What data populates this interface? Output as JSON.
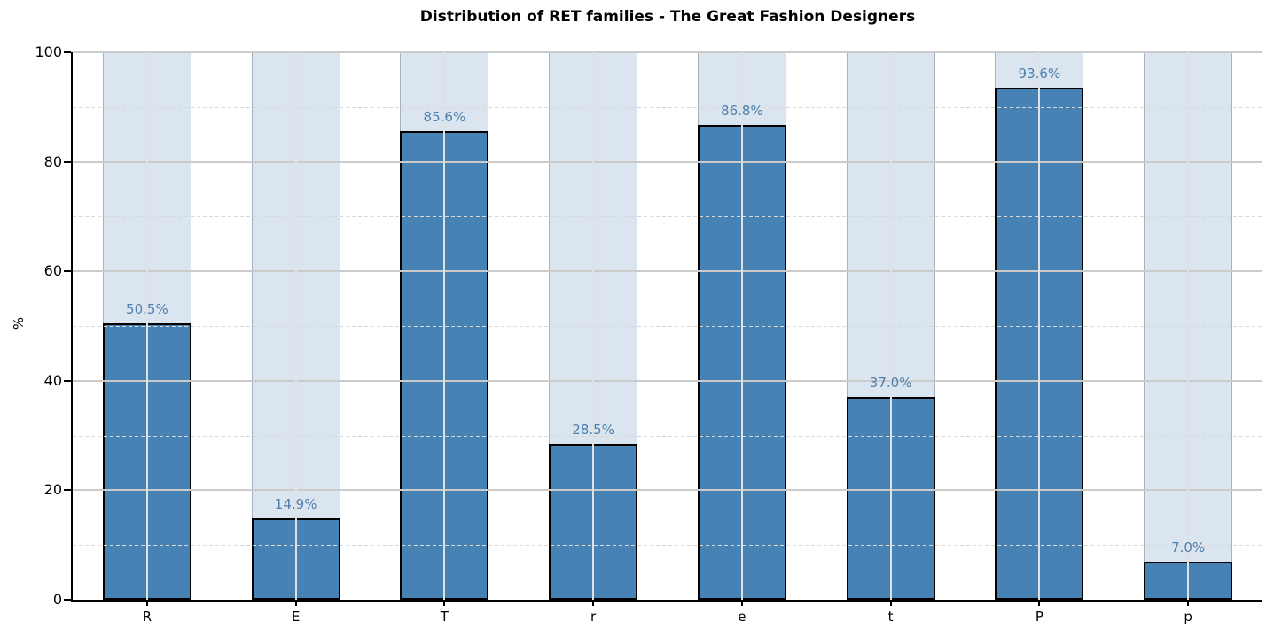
{
  "chart_data": {
    "type": "bar",
    "title": "Distribution of RET families - The Great Fashion Designers",
    "xlabel": "",
    "ylabel": "%",
    "categories": [
      "R",
      "E",
      "T",
      "r",
      "e",
      "t",
      "P",
      "p"
    ],
    "values": [
      50.5,
      14.9,
      85.6,
      28.5,
      86.8,
      37.0,
      93.6,
      7.0
    ],
    "value_labels": [
      "50.5%",
      "14.9%",
      "85.6%",
      "28.5%",
      "86.8%",
      "37.0%",
      "93.6%",
      "7.0%"
    ],
    "ylim": [
      0,
      100
    ],
    "yticks": [
      0,
      20,
      40,
      60,
      80,
      100
    ],
    "ytick_labels": [
      "0",
      "20",
      "40",
      "60",
      "80",
      "100"
    ],
    "minor_yticks": [
      10,
      30,
      50,
      70,
      90
    ],
    "background_bar_value": 100,
    "grid": "major solid, minor dashed, drawn above bars",
    "legend": "none",
    "colors": {
      "bar_fill": "#4682b4",
      "bar_edge": "#000000",
      "background_bar_fill": "#dbe5ef",
      "background_bar_edge": "#a9b2bc",
      "value_label": "#4d7fad",
      "grid_major": "#cbcbcb",
      "grid_minor": "#d8d8d8",
      "grid_vertical": "#dfe2e5",
      "axis": "#000000",
      "title": "#000000"
    }
  }
}
